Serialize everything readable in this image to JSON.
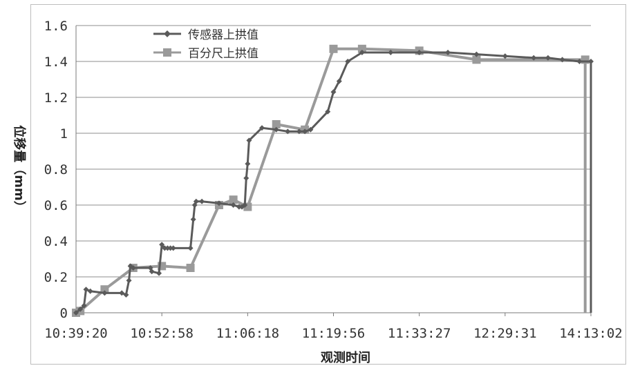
{
  "chart_data": {
    "type": "line",
    "xlabel": "观测时间",
    "ylabel": "位移量（mm）",
    "ylim": [
      0,
      1.6
    ],
    "yticks": [
      "0",
      "0.2",
      "0.4",
      "0.6",
      "0.8",
      "1",
      "1.2",
      "1.4",
      "1.6"
    ],
    "categories": [
      "10:39:20",
      "10:52:58",
      "11:06:18",
      "11:19:56",
      "11:33:27",
      "12:29:31",
      "14:13:02"
    ],
    "legend_position": "top-left",
    "grid": true,
    "series": [
      {
        "name": "传感器上拱值",
        "color": "#5a5a5a",
        "marker": "diamond",
        "x": [
          0,
          0.15,
          0.28,
          0.35,
          0.5,
          1.0,
          1.6,
          1.75,
          1.85,
          1.9,
          2.0,
          2.6,
          2.65,
          2.9,
          3.0,
          3.1,
          3.2,
          3.3,
          3.4,
          4.0,
          4.1,
          4.15,
          4.2,
          4.4,
          5.0,
          5.5,
          5.7,
          5.8,
          5.9,
          5.95,
          6.0,
          6.05,
          6.5,
          7.0,
          7.4,
          7.8,
          8.0,
          8.2,
          8.8,
          9.0,
          9.2,
          9.5,
          10.0,
          11.0,
          12.0,
          13.0,
          14.0,
          15.0,
          16.0,
          16.5,
          17.0,
          17.6,
          18.0
        ],
        "y": [
          0,
          0.02,
          0.04,
          0.13,
          0.12,
          0.11,
          0.11,
          0.1,
          0.18,
          0.26,
          0.25,
          0.25,
          0.23,
          0.22,
          0.38,
          0.36,
          0.36,
          0.36,
          0.36,
          0.36,
          0.52,
          0.6,
          0.62,
          0.62,
          0.61,
          0.6,
          0.59,
          0.59,
          0.6,
          0.75,
          0.83,
          0.96,
          1.03,
          1.02,
          1.01,
          1.01,
          1.01,
          1.02,
          1.12,
          1.23,
          1.29,
          1.4,
          1.45,
          1.45,
          1.45,
          1.45,
          1.44,
          1.43,
          1.42,
          1.42,
          1.41,
          1.4,
          1.4
        ]
      },
      {
        "name": "百分尺上拱值",
        "color": "#9a9a9a",
        "marker": "square",
        "x": [
          0,
          0.15,
          1.0,
          2.0,
          3.0,
          4.0,
          5.0,
          5.5,
          6.0,
          7.0,
          8.0,
          9.0,
          10.0,
          12.0,
          14.0,
          17.8
        ],
        "y": [
          0,
          0.01,
          0.13,
          0.25,
          0.26,
          0.25,
          0.6,
          0.63,
          0.59,
          1.05,
          1.02,
          1.47,
          1.47,
          1.46,
          1.41,
          1.41
        ]
      }
    ]
  }
}
